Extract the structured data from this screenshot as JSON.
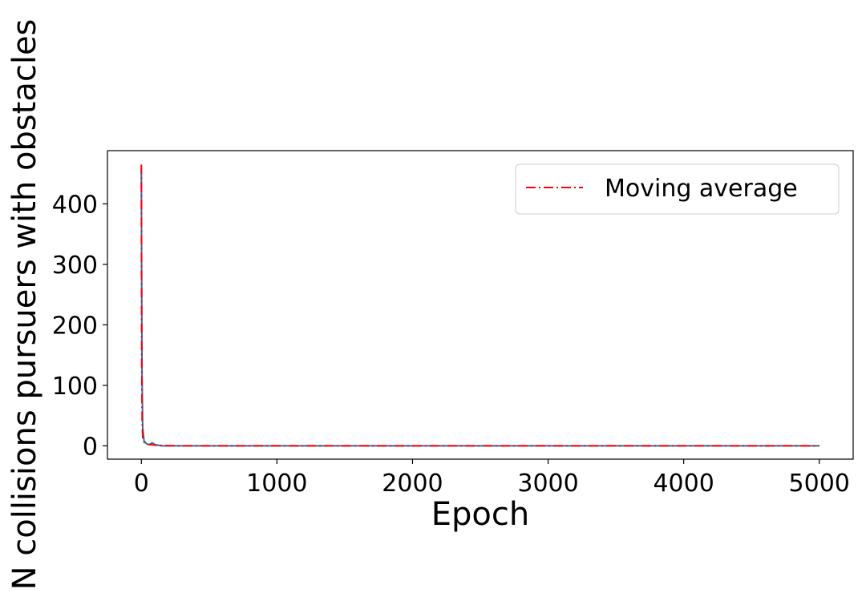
{
  "chart_data": {
    "type": "line",
    "title": "",
    "xlabel": "Epoch",
    "ylabel": "N collisions pursuers with obstacles",
    "xlim": [
      -250,
      5250
    ],
    "ylim": [
      -22,
      488
    ],
    "xticks": [
      0,
      1000,
      2000,
      3000,
      4000,
      5000
    ],
    "xtick_labels": [
      "0",
      "1000",
      "2000",
      "3000",
      "4000",
      "5000"
    ],
    "yticks": [
      0,
      100,
      200,
      300,
      400
    ],
    "ytick_labels": [
      "0",
      "100",
      "200",
      "300",
      "400"
    ],
    "grid": false,
    "legend": {
      "placement": "upper-right",
      "entries": [
        "Moving average"
      ]
    },
    "series": [
      {
        "color": "#1f77b4",
        "style": "solid",
        "x": [
          0,
          2,
          5,
          10,
          20,
          40,
          60,
          80,
          100,
          150,
          300,
          1000,
          2000,
          3000,
          4000,
          5000
        ],
        "y": [
          460,
          300,
          120,
          30,
          8,
          3,
          2,
          5,
          2,
          0,
          0,
          0,
          0,
          0,
          0,
          0
        ]
      },
      {
        "name": "Moving average",
        "color": "#ff0000",
        "style": "dashdot",
        "x": [
          0,
          1,
          3,
          6,
          10,
          20,
          40,
          80,
          150,
          300,
          1000,
          2000,
          3000,
          4000,
          5000
        ],
        "y": [
          465,
          350,
          140,
          40,
          14,
          6,
          3,
          1.5,
          0.5,
          0,
          0,
          0,
          0,
          0,
          0
        ]
      }
    ]
  }
}
